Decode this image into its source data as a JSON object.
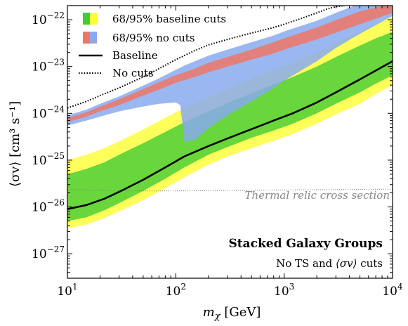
{
  "chart_data": {
    "type": "area",
    "x_scale": "log",
    "y_scale": "log",
    "xlim": [
      10,
      10000
    ],
    "ylim": [
      3e-28,
      2e-22
    ],
    "xlabel_base": "m",
    "xlabel_sub": "χ",
    "xlabel_unit": " [GeV]",
    "ylabel": "⟨σv⟩ [cm³ s⁻¹]",
    "x_ticks": [
      {
        "value": 10,
        "base": "10",
        "exp": "1"
      },
      {
        "value": 100,
        "base": "10",
        "exp": "2"
      },
      {
        "value": 1000,
        "base": "10",
        "exp": "3"
      },
      {
        "value": 10000,
        "base": "10",
        "exp": "4"
      }
    ],
    "y_ticks": [
      {
        "value": 1e-27,
        "base": "10",
        "exp": "−27"
      },
      {
        "value": 1e-26,
        "base": "10",
        "exp": "−26"
      },
      {
        "value": 1e-25,
        "base": "10",
        "exp": "−25"
      },
      {
        "value": 1e-24,
        "base": "10",
        "exp": "−24"
      },
      {
        "value": 1e-23,
        "base": "10",
        "exp": "−23"
      },
      {
        "value": 1e-22,
        "base": "10",
        "exp": "−22"
      }
    ],
    "colors": {
      "baseline_95": "#ffff33",
      "baseline_68": "#44cc33",
      "nocuts_95": "#88aaee",
      "nocuts_68": "#ee7766",
      "baseline_line": "#000000",
      "nocuts_line": "#000000",
      "thermal": "#888888"
    },
    "series": [
      {
        "name": "Baseline",
        "kind": "line",
        "x": [
          10,
          15,
          22,
          30,
          50,
          80,
          120,
          200,
          300,
          500,
          800,
          1200,
          2000,
          3000,
          5000,
          10000
        ],
        "y": [
          9e-27,
          1.1e-26,
          1.5e-26,
          2.1e-26,
          3.8e-26,
          7e-26,
          1.2e-25,
          2e-25,
          2.9e-25,
          4.6e-25,
          7e-25,
          1e-24,
          1.7e-24,
          2.8e-24,
          5.3e-24,
          1.3e-23
        ]
      },
      {
        "name": "No cuts",
        "kind": "line",
        "x": [
          10,
          15,
          20,
          30,
          50,
          70,
          100,
          150,
          200,
          300,
          500,
          800,
          1000,
          1500,
          2000,
          2500,
          3000,
          3600
        ],
        "y": [
          1.3e-24,
          1.8e-24,
          2.4e-24,
          3.5e-24,
          6e-24,
          9e-24,
          1.4e-23,
          2.2e-23,
          2.9e-23,
          3.8e-23,
          5.2e-23,
          6.8e-23,
          8e-23,
          1.1e-22,
          1.4e-22,
          1.7e-22,
          1.9e-22,
          2e-22
        ]
      }
    ],
    "bands": [
      {
        "key": "baseline_95",
        "x": [
          10,
          15,
          22,
          30,
          50,
          80,
          120,
          200,
          300,
          500,
          800,
          1200,
          2000,
          3000,
          5000,
          7000,
          10000
        ],
        "lower": [
          3.5e-27,
          4.2e-27,
          5.8e-27,
          8e-27,
          1.4e-26,
          2.5e-26,
          4.3e-26,
          8e-26,
          1.2e-25,
          1.8e-25,
          2.6e-25,
          3.6e-25,
          6e-25,
          9.5e-25,
          1.6e-24,
          2.6e-24,
          4e-24
        ],
        "upper": [
          1e-25,
          1.3e-25,
          1.8e-25,
          2.5e-25,
          4.5e-25,
          8e-25,
          1.3e-24,
          2.2e-24,
          3.3e-24,
          5.5e-24,
          8.5e-24,
          1.2e-23,
          2e-23,
          3.2e-23,
          5.5e-23,
          8e-23,
          1.15e-22
        ]
      },
      {
        "key": "baseline_68",
        "x": [
          10,
          15,
          22,
          30,
          50,
          80,
          120,
          200,
          300,
          500,
          800,
          1200,
          2000,
          3000,
          5000,
          7000,
          10000
        ],
        "lower": [
          5e-27,
          6e-27,
          8.5e-27,
          1.2e-26,
          2.2e-26,
          4e-26,
          7e-26,
          1.3e-25,
          1.9e-25,
          3e-25,
          4.3e-25,
          6e-25,
          1e-24,
          1.6e-24,
          2.8e-24,
          4.3e-24,
          6.5e-24
        ],
        "upper": [
          5e-26,
          6.5e-26,
          9e-26,
          1.3e-25,
          2.3e-25,
          4e-25,
          6.5e-25,
          1.1e-24,
          1.65e-24,
          2.7e-24,
          4.2e-24,
          6e-24,
          1e-23,
          1.6e-23,
          2.8e-23,
          4e-23,
          5.5e-23
        ]
      },
      {
        "key": "nocuts_95",
        "x": [
          10,
          15,
          20,
          30,
          50,
          70,
          100,
          110,
          120,
          150,
          200,
          300,
          500,
          800,
          1000,
          2000,
          3000,
          5000,
          10000
        ],
        "lower": [
          5.5e-25,
          7e-25,
          8.5e-25,
          1.1e-24,
          1.4e-24,
          1.6e-24,
          1.7e-24,
          1.5e-24,
          2.5e-25,
          2.7e-25,
          4.8e-25,
          9e-25,
          1.8e-24,
          3.5e-24,
          5e-24,
          1.3e-23,
          2.5e-23,
          5e-23,
          1.2e-22
        ],
        "upper": [
          9e-25,
          1.2e-24,
          1.6e-24,
          2.3e-24,
          3.9e-24,
          5.6e-24,
          8.5e-24,
          9.5e-24,
          1.05e-23,
          1.3e-23,
          1.7e-23,
          2.3e-23,
          3.3e-23,
          4.6e-23,
          5.6e-23,
          9.5e-23,
          1.4e-22,
          2.2e-22,
          2.2e-22
        ]
      },
      {
        "key": "nocuts_68",
        "x": [
          10,
          15,
          20,
          30,
          50,
          70,
          100,
          150,
          200,
          300,
          500,
          800,
          1000,
          2000,
          3000,
          5000,
          10000
        ],
        "lower": [
          6.5e-25,
          8.5e-25,
          1.1e-24,
          1.5e-24,
          2.4e-24,
          3.2e-24,
          4.5e-24,
          6e-24,
          7.5e-24,
          1e-23,
          1.4e-23,
          1.9e-23,
          2.3e-23,
          3.8e-23,
          5.3e-23,
          8e-23,
          1.4e-22
        ],
        "upper": [
          8e-25,
          1.05e-24,
          1.4e-24,
          2e-24,
          3.3e-24,
          4.6e-24,
          6.5e-24,
          9e-24,
          1.2e-23,
          1.6e-23,
          2.3e-23,
          3.3e-23,
          4e-23,
          6.8e-23,
          9.8e-23,
          1.5e-22,
          2.2e-22
        ]
      }
    ],
    "thermal_relic": {
      "label": "Thermal relic cross section",
      "x": [
        10,
        20,
        50,
        100,
        300,
        1000,
        3000,
        10000
      ],
      "y": [
        2.35e-26,
        2.25e-26,
        2.2e-26,
        2.2e-26,
        2.25e-26,
        2.3e-26,
        2.35e-26,
        2.4e-26
      ]
    },
    "legend": {
      "placement": "top-left",
      "entries": [
        {
          "label": "68/95% baseline cuts",
          "swatch": [
            "baseline_68",
            "baseline_95"
          ]
        },
        {
          "label": "68/95% no cuts",
          "swatch": [
            "nocuts_68",
            "nocuts_95"
          ]
        },
        {
          "label": "Baseline",
          "style": "solid"
        },
        {
          "label": "No cuts",
          "style": "dotted"
        }
      ]
    },
    "annotation": {
      "title": "Stacked Galaxy Groups",
      "subtitle_pre": "No TS and ",
      "subtitle_sym": "⟨σv⟩",
      "subtitle_post": " cuts"
    }
  }
}
